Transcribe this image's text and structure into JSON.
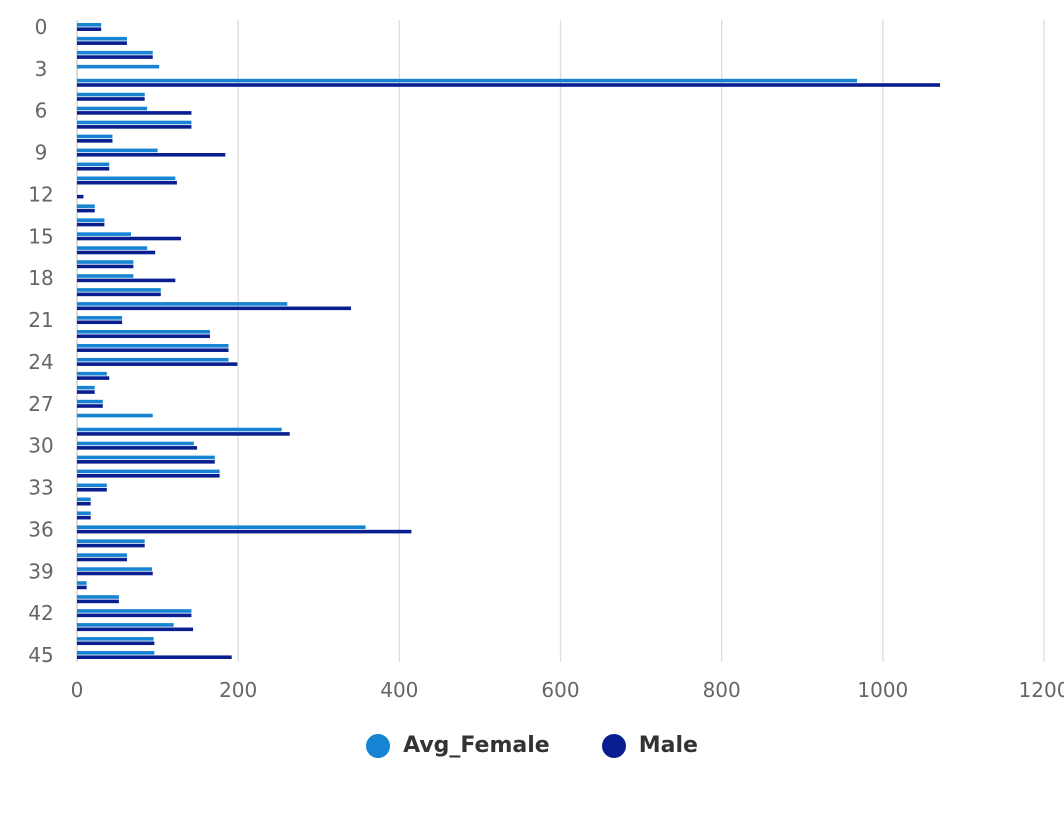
{
  "chart_data": {
    "type": "bar",
    "orientation": "horizontal",
    "categories": [
      0,
      1,
      2,
      3,
      4,
      5,
      6,
      7,
      8,
      9,
      10,
      11,
      12,
      13,
      14,
      15,
      16,
      17,
      18,
      19,
      20,
      21,
      22,
      23,
      24,
      25,
      26,
      27,
      28,
      29,
      30,
      31,
      32,
      33,
      34,
      35,
      36,
      37,
      38,
      39,
      40,
      41,
      42,
      43,
      44,
      45
    ],
    "y_tick_labels": [
      "0",
      "3",
      "6",
      "9",
      "12",
      "15",
      "18",
      "21",
      "24",
      "27",
      "30",
      "33",
      "36",
      "39",
      "42",
      "45"
    ],
    "x_ticks": [
      0,
      200,
      400,
      600,
      800,
      1000,
      1200
    ],
    "xlim": [
      0,
      1200
    ],
    "grid": "vertical",
    "legend_position": "bottom",
    "series": [
      {
        "name": "Avg_Female",
        "color": "#1683d3",
        "values": [
          30,
          62,
          94,
          102,
          968,
          84,
          87,
          142,
          44,
          100,
          40,
          122,
          0,
          22,
          34,
          67,
          87,
          70,
          70,
          104,
          261,
          56,
          165,
          188,
          188,
          37,
          22,
          32,
          94,
          254,
          145,
          171,
          177,
          37,
          17,
          17,
          358,
          84,
          62,
          93,
          12,
          52,
          142,
          120,
          95,
          96
        ]
      },
      {
        "name": "Male",
        "color": "#0a1f8f",
        "values": [
          30,
          62,
          94,
          0,
          1071,
          84,
          142,
          142,
          44,
          184,
          40,
          124,
          8,
          22,
          34,
          129,
          97,
          70,
          122,
          104,
          340,
          56,
          165,
          188,
          199,
          40,
          22,
          32,
          0,
          264,
          149,
          171,
          177,
          37,
          17,
          17,
          415,
          84,
          62,
          94,
          12,
          52,
          142,
          144,
          96,
          192
        ]
      }
    ]
  },
  "legend": {
    "items": [
      {
        "label": "Avg_Female",
        "color": "#1683d3"
      },
      {
        "label": "Male",
        "color": "#0a1f8f"
      }
    ]
  }
}
